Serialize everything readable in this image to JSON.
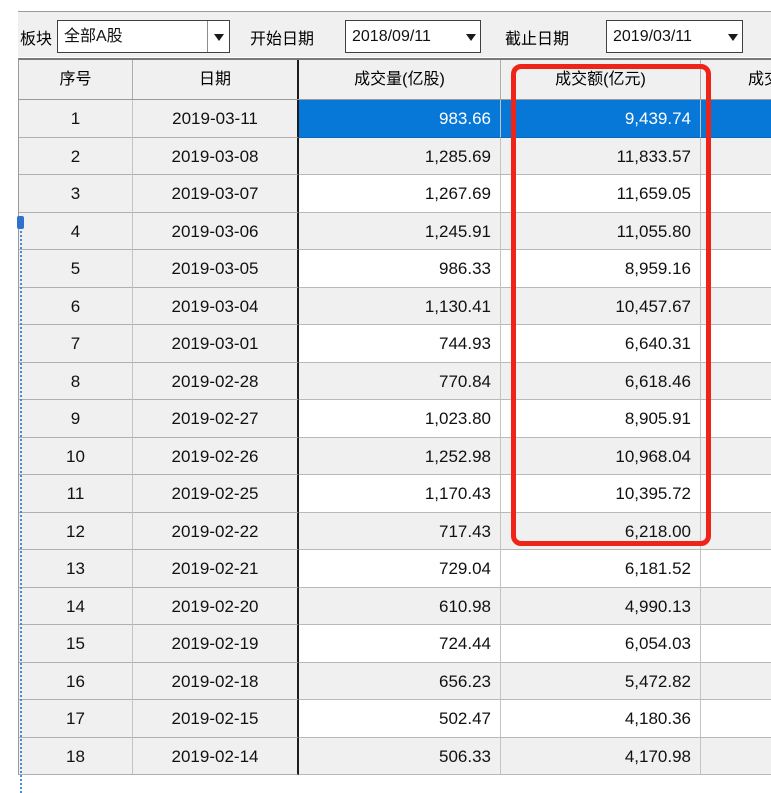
{
  "toolbar": {
    "sector_label": "板块",
    "sector_value": "全部A股",
    "start_date_label": "开始日期",
    "start_date_value": "2018/09/11",
    "end_date_label": "截止日期",
    "end_date_value": "2019/03/11"
  },
  "table": {
    "columns": [
      "序号",
      "日期",
      "成交量(亿股)",
      "成交额(亿元)",
      "成交"
    ],
    "selected_index": 0,
    "rows": [
      {
        "seq": "1",
        "date": "2019-03-11",
        "volume": "983.66",
        "amount": "9,439.74"
      },
      {
        "seq": "2",
        "date": "2019-03-08",
        "volume": "1,285.69",
        "amount": "11,833.57"
      },
      {
        "seq": "3",
        "date": "2019-03-07",
        "volume": "1,267.69",
        "amount": "11,659.05"
      },
      {
        "seq": "4",
        "date": "2019-03-06",
        "volume": "1,245.91",
        "amount": "11,055.80"
      },
      {
        "seq": "5",
        "date": "2019-03-05",
        "volume": "986.33",
        "amount": "8,959.16"
      },
      {
        "seq": "6",
        "date": "2019-03-04",
        "volume": "1,130.41",
        "amount": "10,457.67"
      },
      {
        "seq": "7",
        "date": "2019-03-01",
        "volume": "744.93",
        "amount": "6,640.31"
      },
      {
        "seq": "8",
        "date": "2019-02-28",
        "volume": "770.84",
        "amount": "6,618.46"
      },
      {
        "seq": "9",
        "date": "2019-02-27",
        "volume": "1,023.80",
        "amount": "8,905.91"
      },
      {
        "seq": "10",
        "date": "2019-02-26",
        "volume": "1,252.98",
        "amount": "10,968.04"
      },
      {
        "seq": "11",
        "date": "2019-02-25",
        "volume": "1,170.43",
        "amount": "10,395.72"
      },
      {
        "seq": "12",
        "date": "2019-02-22",
        "volume": "717.43",
        "amount": "6,218.00"
      },
      {
        "seq": "13",
        "date": "2019-02-21",
        "volume": "729.04",
        "amount": "6,181.52"
      },
      {
        "seq": "14",
        "date": "2019-02-20",
        "volume": "610.98",
        "amount": "4,990.13"
      },
      {
        "seq": "15",
        "date": "2019-02-19",
        "volume": "724.44",
        "amount": "6,054.03"
      },
      {
        "seq": "16",
        "date": "2019-02-18",
        "volume": "656.23",
        "amount": "5,472.82"
      },
      {
        "seq": "17",
        "date": "2019-02-15",
        "volume": "502.47",
        "amount": "4,180.36"
      },
      {
        "seq": "18",
        "date": "2019-02-14",
        "volume": "506.33",
        "amount": "4,170.98"
      }
    ]
  },
  "annotation": {
    "shape": "red-rectangle",
    "highlighted_column": "成交额(亿元)",
    "rows_covered": "1-12"
  },
  "colors": {
    "selection_blue": "#0778d8",
    "annotation_red": "#ee2419",
    "row_stripe_gray": "#f0f0f0",
    "dotted_marker_blue": "#4a8ad8"
  }
}
